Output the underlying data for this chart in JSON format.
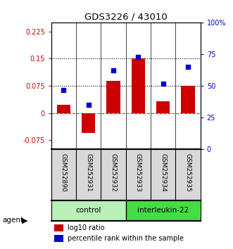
{
  "title": "GDS3226 / 43010",
  "samples": [
    "GSM252890",
    "GSM252931",
    "GSM252932",
    "GSM252933",
    "GSM252934",
    "GSM252935"
  ],
  "log10_ratio": [
    0.022,
    -0.055,
    0.088,
    0.15,
    0.033,
    0.075
  ],
  "percentile_rank": [
    0.47,
    0.35,
    0.62,
    0.73,
    0.52,
    0.65
  ],
  "bar_color": "#CC0000",
  "dot_color": "#0000CC",
  "ylim_left": [
    -0.1,
    0.25
  ],
  "ylim_right": [
    0.0,
    1.0
  ],
  "yticks_left": [
    -0.075,
    0.0,
    0.075,
    0.15,
    0.225
  ],
  "yticks_right": [
    0.0,
    0.25,
    0.5,
    0.75,
    1.0
  ],
  "ytick_labels_left": [
    "-0.075",
    "0",
    "0.075",
    "0.15",
    "0.225"
  ],
  "ytick_labels_right": [
    "0",
    "25",
    "50",
    "75",
    "100%"
  ],
  "hlines": [
    0.075,
    0.15
  ],
  "control_color": "#b8f0b8",
  "interleukin_color": "#44dd44",
  "sample_bg": "#d8d8d8",
  "legend_items": [
    "log10 ratio",
    "percentile rank within the sample"
  ],
  "legend_colors": [
    "#CC0000",
    "#0000CC"
  ],
  "bar_width": 0.55
}
